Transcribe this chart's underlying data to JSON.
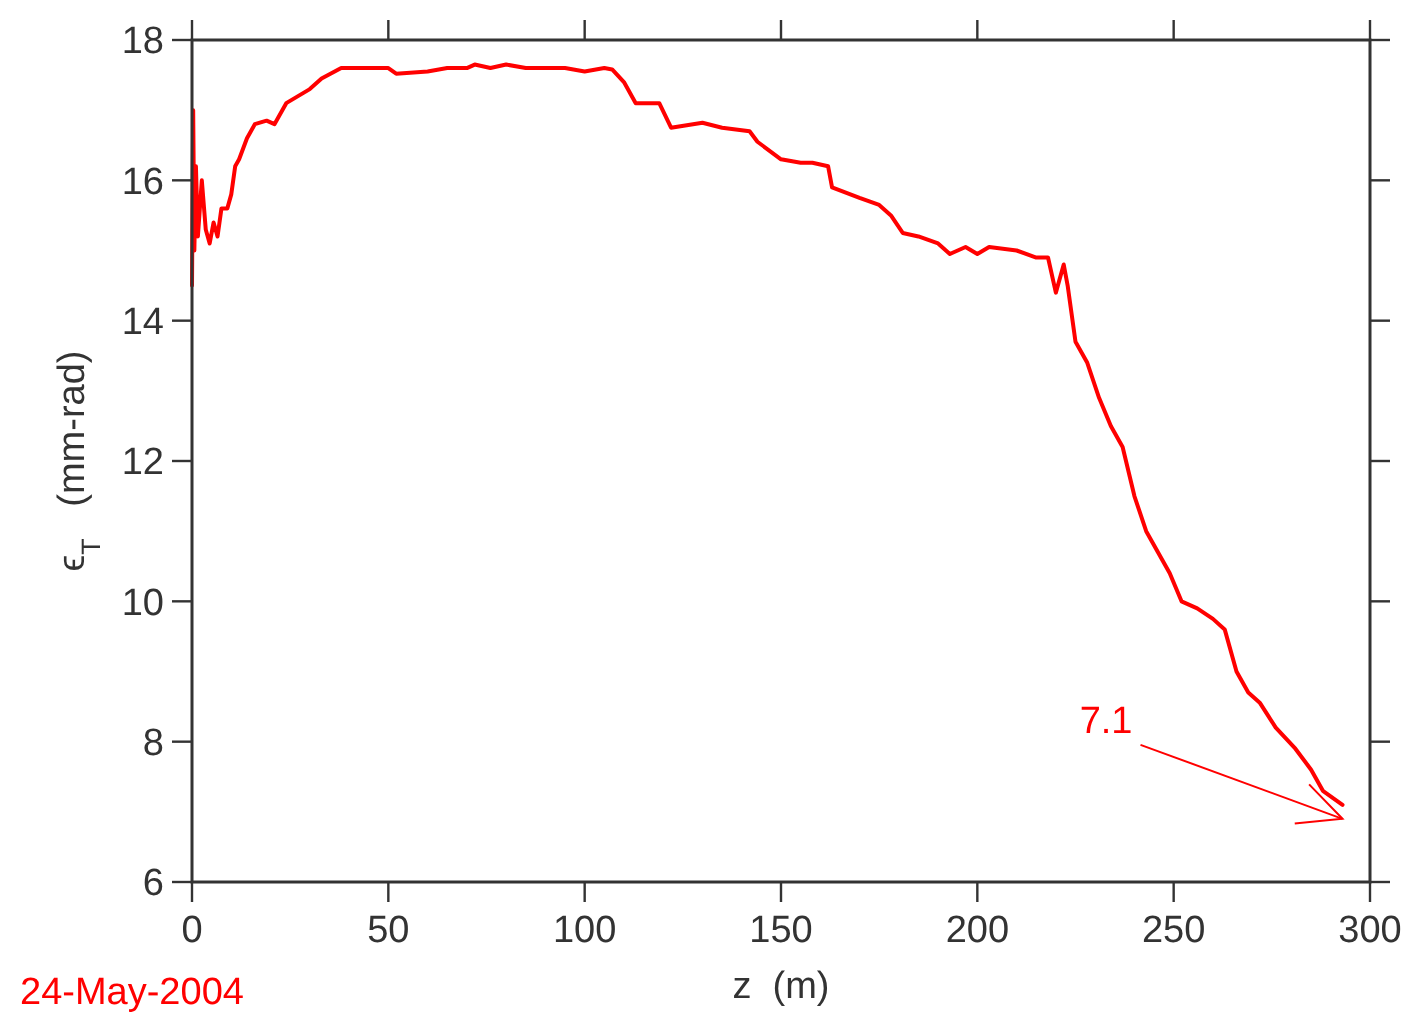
{
  "chart_data": {
    "type": "line",
    "xlabel": "z  (m)",
    "ylabel": "ϵ$_{T}$  (mm-rad)",
    "xlim": [
      0,
      300
    ],
    "ylim": [
      6,
      18
    ],
    "xticks": [
      0,
      50,
      100,
      150,
      200,
      250,
      300
    ],
    "yticks": [
      6,
      8,
      10,
      12,
      14,
      16,
      18
    ],
    "grid": false,
    "series": [
      {
        "color": "#ff0000",
        "x": [
          0,
          0.3,
          0.6,
          1,
          1.5,
          2.5,
          3.5,
          4.5,
          5.5,
          6.5,
          7.5,
          9,
          10,
          11,
          12,
          14,
          16,
          19,
          21,
          24,
          27,
          30,
          33,
          38,
          42,
          50,
          52,
          60,
          65,
          70,
          72,
          76,
          80,
          85,
          95,
          100,
          105,
          107,
          110,
          113,
          119,
          122,
          130,
          135,
          142,
          144,
          150,
          155,
          158,
          162,
          163,
          170,
          175,
          178,
          181,
          185,
          190,
          193,
          197,
          200,
          203,
          210,
          215,
          218,
          220,
          222,
          223,
          225,
          228,
          231,
          234,
          237,
          240,
          243,
          246,
          249,
          252,
          256,
          260,
          263,
          266,
          269,
          272,
          276,
          281,
          285,
          288,
          293
        ],
        "values": [
          14.5,
          17.0,
          15.0,
          16.2,
          15.2,
          16.0,
          15.3,
          15.1,
          15.4,
          15.2,
          15.6,
          15.6,
          15.8,
          16.2,
          16.3,
          16.6,
          16.8,
          16.85,
          16.8,
          17.1,
          17.2,
          17.3,
          17.45,
          17.6,
          17.6,
          17.6,
          17.52,
          17.55,
          17.6,
          17.6,
          17.65,
          17.6,
          17.65,
          17.6,
          17.6,
          17.55,
          17.6,
          17.58,
          17.4,
          17.1,
          17.1,
          16.75,
          16.82,
          16.75,
          16.7,
          16.55,
          16.3,
          16.25,
          16.25,
          16.2,
          15.9,
          15.75,
          15.65,
          15.5,
          15.25,
          15.2,
          15.1,
          14.95,
          15.05,
          14.95,
          15.05,
          15.0,
          14.9,
          14.9,
          14.4,
          14.8,
          14.5,
          13.7,
          13.4,
          12.9,
          12.5,
          12.2,
          11.5,
          11.0,
          10.7,
          10.4,
          10.0,
          9.9,
          9.75,
          9.6,
          9.0,
          8.7,
          8.55,
          8.2,
          7.9,
          7.6,
          7.3,
          7.1
        ]
      }
    ],
    "annotations": [
      {
        "text": "7.1",
        "x": 293,
        "y": 7.1
      },
      "24-May-2004"
    ]
  }
}
